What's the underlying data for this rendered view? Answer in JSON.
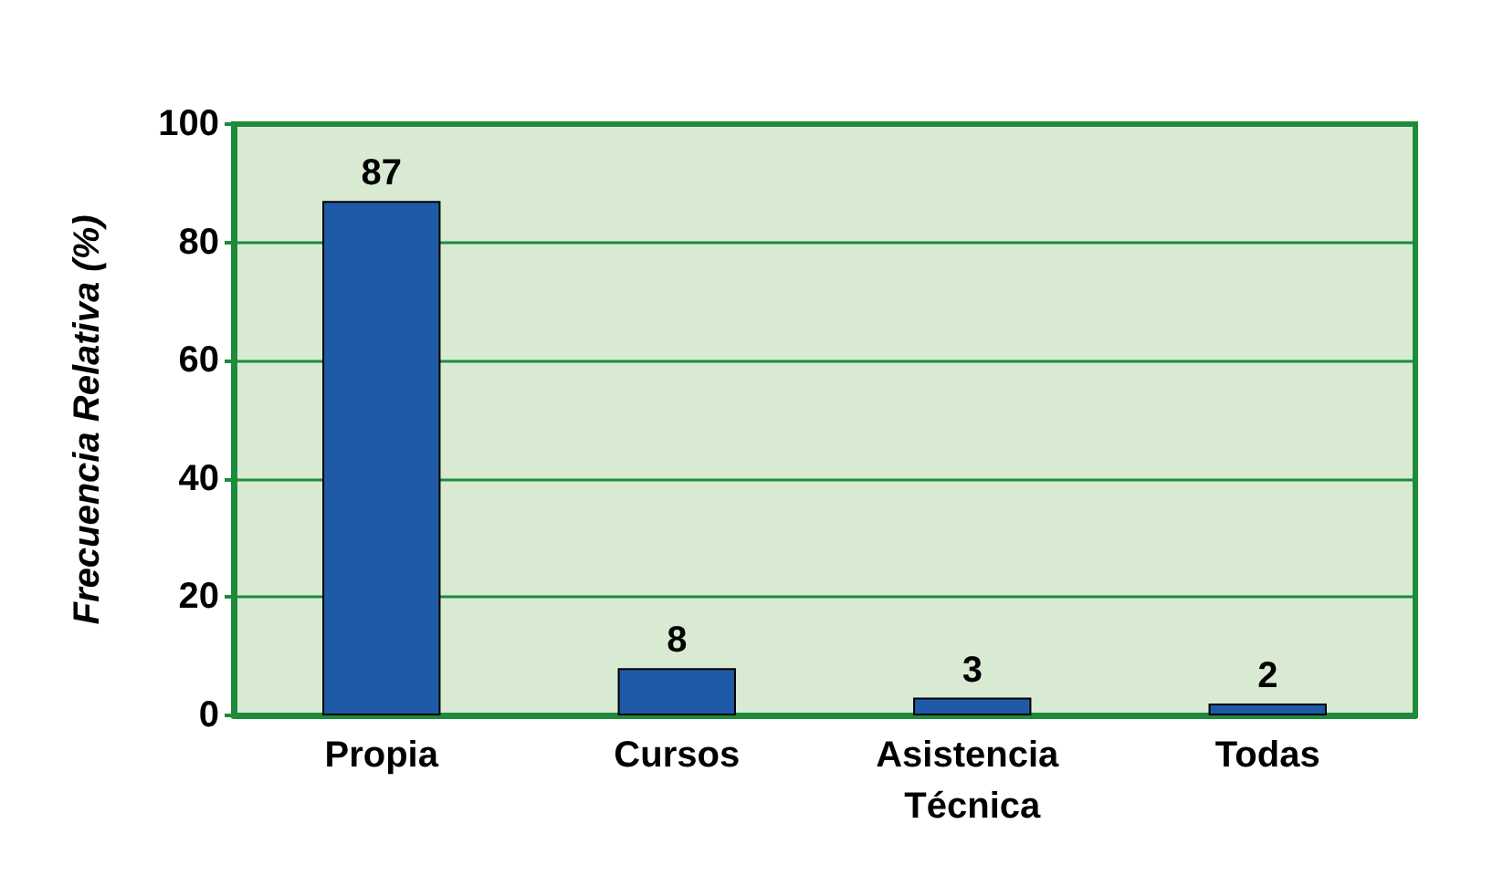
{
  "chart_data": {
    "type": "bar",
    "ylabel": "Frecuencia Relativa (%)",
    "categories": [
      "Propia",
      "Cursos",
      "Asistencia Técnica",
      "Todas"
    ],
    "values": [
      87,
      8,
      3,
      2
    ],
    "color": "#1f5aa6",
    "ylim": [
      0,
      100
    ],
    "yticks": [
      0,
      20,
      40,
      60,
      80,
      100
    ],
    "grid": "y",
    "data_labels": true
  }
}
